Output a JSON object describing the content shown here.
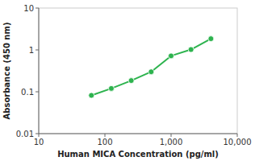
{
  "chart_data": {
    "type": "line",
    "x": [
      62.5,
      125,
      250,
      500,
      1000,
      2000,
      4000
    ],
    "values": [
      0.082,
      0.12,
      0.185,
      0.3,
      0.72,
      1.02,
      1.85
    ],
    "color": "#2db34e",
    "marker": "circle",
    "xlabel": "Human MICA Concentration (pg/ml)",
    "ylabel": "Absorbance (450 nm)",
    "xlim": [
      10,
      10000
    ],
    "ylim": [
      0.01,
      10
    ],
    "xticks": [
      10,
      100,
      {
        "value": 1000,
        "label": "1,000"
      },
      {
        "value": 10000,
        "label": "10,000"
      }
    ],
    "yticks": [
      0.01,
      0.1,
      1,
      10
    ],
    "log": true,
    "grid": false
  }
}
